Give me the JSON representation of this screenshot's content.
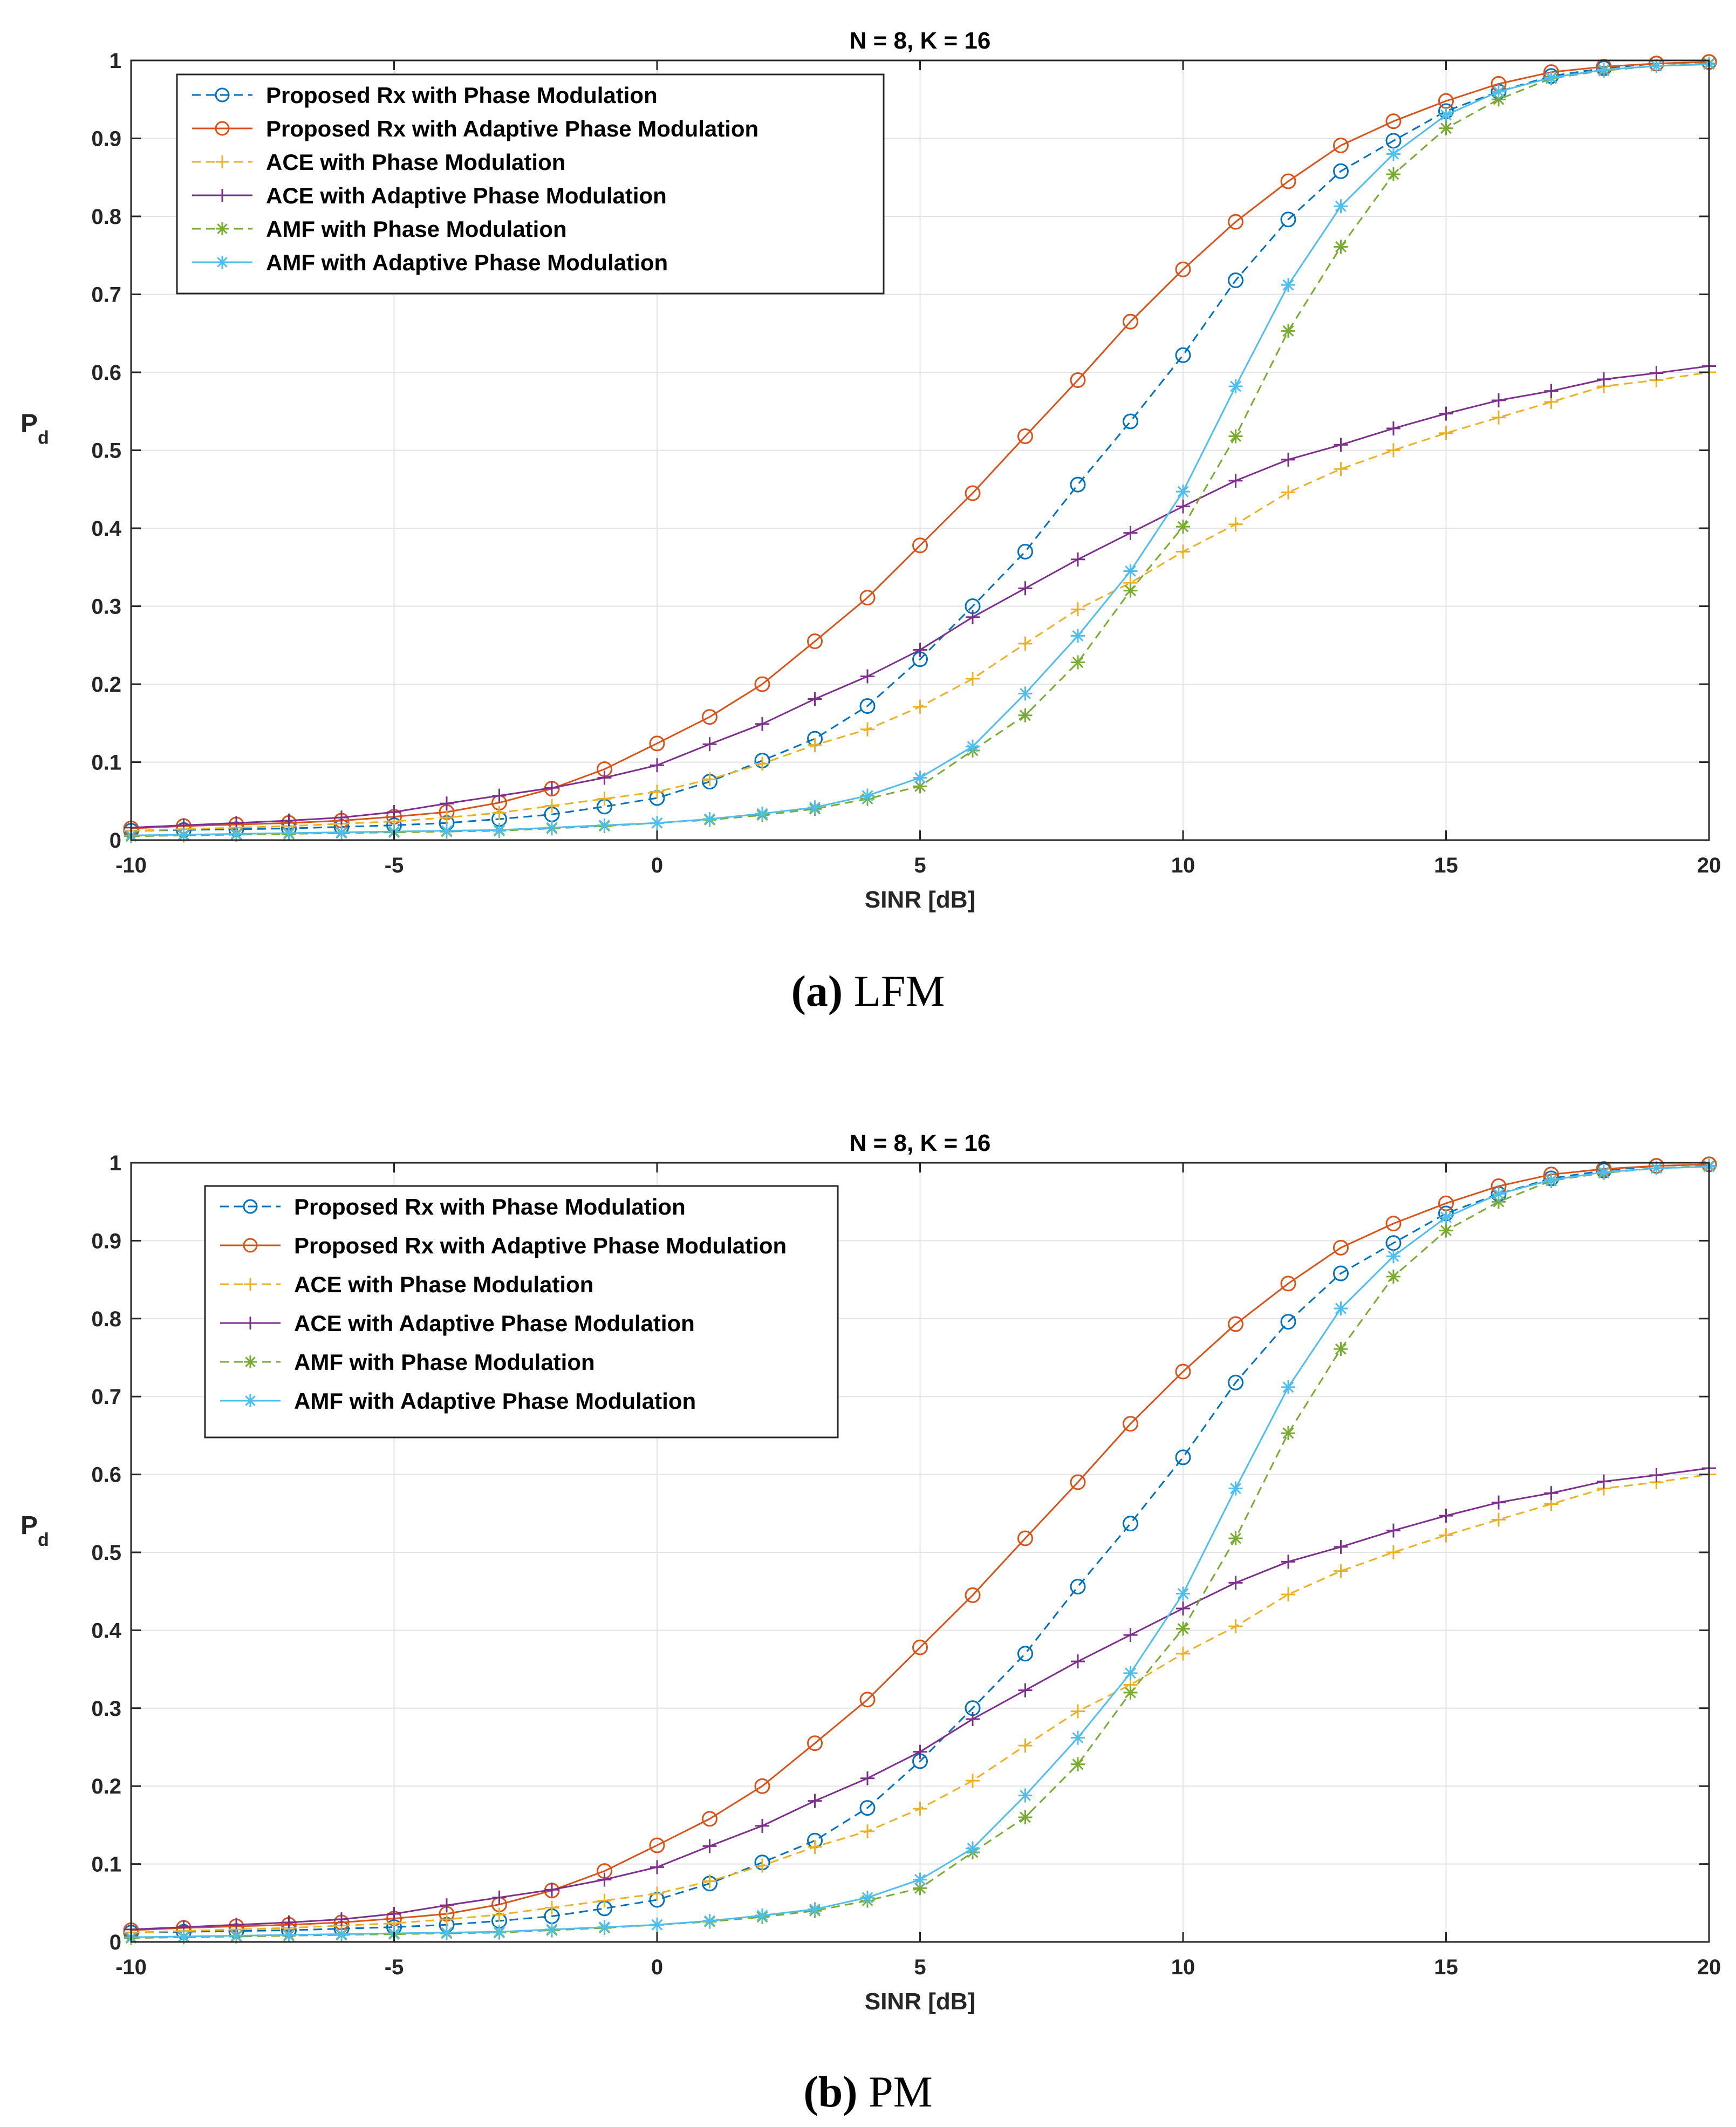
{
  "captions": [
    {
      "label": "(a)",
      "text": "LFM"
    },
    {
      "label": "(b)",
      "text": "PM"
    }
  ],
  "colors": {
    "proposed_pm": "#0072BD",
    "proposed_apm": "#D95319",
    "ace_pm": "#EDB120",
    "ace_apm": "#7E2F8E",
    "amf_pm": "#77AC30",
    "amf_apm": "#4DBEEE"
  },
  "chart_data": [
    {
      "type": "line",
      "title": "N = 8, K = 16",
      "xlabel": "SINR [dB]",
      "ylabel": "P",
      "ylabel_sub": "d",
      "xlim": [
        -10,
        20
      ],
      "ylim": [
        0,
        1
      ],
      "xticks": [
        -10,
        -5,
        0,
        5,
        10,
        15,
        20
      ],
      "yticks": [
        0,
        0.1,
        0.2,
        0.3,
        0.4,
        0.5,
        0.6,
        0.7,
        0.8,
        0.9,
        1
      ],
      "grid": true,
      "legend_position": "top-left",
      "x": [
        -10,
        -9,
        -8,
        -7,
        -6,
        -5,
        -4,
        -3,
        -2,
        -1,
        0,
        1,
        2,
        3,
        4,
        5,
        6,
        7,
        8,
        9,
        10,
        11,
        12,
        13,
        14,
        15,
        16,
        17,
        18,
        19,
        20
      ],
      "series": [
        {
          "name": "Proposed Rx with Phase Modulation",
          "color_key": "proposed_pm",
          "dash": true,
          "marker": "circle",
          "values": [
            0.012,
            0.013,
            0.014,
            0.015,
            0.017,
            0.019,
            0.022,
            0.027,
            0.033,
            0.043,
            0.054,
            0.075,
            0.102,
            0.13,
            0.172,
            0.232,
            0.3,
            0.37,
            0.456,
            0.537,
            0.622,
            0.718,
            0.796,
            0.858,
            0.897,
            0.935,
            0.96,
            0.98,
            0.99,
            0.996,
            0.998
          ]
        },
        {
          "name": "Proposed Rx with Adaptive Phase Modulation",
          "color_key": "proposed_apm",
          "dash": false,
          "marker": "circle",
          "values": [
            0.015,
            0.018,
            0.02,
            0.022,
            0.025,
            0.03,
            0.036,
            0.048,
            0.066,
            0.091,
            0.124,
            0.158,
            0.2,
            0.255,
            0.311,
            0.378,
            0.445,
            0.518,
            0.59,
            0.665,
            0.732,
            0.793,
            0.845,
            0.891,
            0.922,
            0.948,
            0.97,
            0.985,
            0.992,
            0.996,
            0.998
          ]
        },
        {
          "name": "ACE with Phase Modulation",
          "color_key": "ace_pm",
          "dash": true,
          "marker": "plus",
          "values": [
            0.012,
            0.014,
            0.016,
            0.018,
            0.021,
            0.024,
            0.029,
            0.035,
            0.044,
            0.053,
            0.062,
            0.078,
            0.098,
            0.122,
            0.142,
            0.171,
            0.207,
            0.252,
            0.296,
            0.33,
            0.37,
            0.405,
            0.446,
            0.476,
            0.5,
            0.522,
            0.542,
            0.562,
            0.582,
            0.59,
            0.6
          ]
        },
        {
          "name": "ACE with Adaptive Phase Modulation",
          "color_key": "ace_apm",
          "dash": false,
          "marker": "plus",
          "values": [
            0.016,
            0.019,
            0.022,
            0.025,
            0.029,
            0.036,
            0.047,
            0.057,
            0.067,
            0.08,
            0.096,
            0.123,
            0.149,
            0.181,
            0.21,
            0.244,
            0.286,
            0.323,
            0.36,
            0.394,
            0.428,
            0.461,
            0.488,
            0.507,
            0.528,
            0.547,
            0.564,
            0.576,
            0.591,
            0.599,
            0.608
          ]
        },
        {
          "name": "AMF with Phase Modulation",
          "color_key": "amf_pm",
          "dash": true,
          "marker": "asterisk",
          "values": [
            0.005,
            0.006,
            0.007,
            0.008,
            0.009,
            0.01,
            0.011,
            0.012,
            0.015,
            0.018,
            0.022,
            0.026,
            0.032,
            0.04,
            0.053,
            0.069,
            0.115,
            0.16,
            0.228,
            0.32,
            0.402,
            0.518,
            0.653,
            0.761,
            0.854,
            0.913,
            0.95,
            0.977,
            0.987,
            0.993,
            0.996
          ]
        },
        {
          "name": "AMF with Adaptive Phase Modulation",
          "color_key": "amf_apm",
          "dash": false,
          "marker": "asterisk",
          "values": [
            0.006,
            0.007,
            0.008,
            0.009,
            0.01,
            0.011,
            0.012,
            0.013,
            0.016,
            0.019,
            0.022,
            0.027,
            0.034,
            0.042,
            0.057,
            0.08,
            0.12,
            0.188,
            0.262,
            0.345,
            0.447,
            0.582,
            0.712,
            0.813,
            0.88,
            0.93,
            0.96,
            0.978,
            0.988,
            0.993,
            0.995
          ]
        }
      ]
    },
    {
      "type": "line",
      "title": "N = 8, K = 16",
      "xlabel": "SINR [dB]",
      "ylabel": "P",
      "ylabel_sub": "d",
      "xlim": [
        -10,
        20
      ],
      "ylim": [
        0,
        1
      ],
      "xticks": [
        -10,
        -5,
        0,
        5,
        10,
        15,
        20
      ],
      "yticks": [
        0,
        0.1,
        0.2,
        0.3,
        0.4,
        0.5,
        0.6,
        0.7,
        0.8,
        0.9,
        1
      ],
      "grid": true,
      "legend_position": "top-left",
      "x": [
        -10,
        -9,
        -8,
        -7,
        -6,
        -5,
        -4,
        -3,
        -2,
        -1,
        0,
        1,
        2,
        3,
        4,
        5,
        6,
        7,
        8,
        9,
        10,
        11,
        12,
        13,
        14,
        15,
        16,
        17,
        18,
        19,
        20
      ],
      "series": [
        {
          "name": "Proposed Rx with Phase Modulation",
          "color_key": "proposed_pm",
          "dash": true,
          "marker": "circle",
          "values": [
            0.012,
            0.013,
            0.014,
            0.015,
            0.017,
            0.019,
            0.022,
            0.027,
            0.033,
            0.043,
            0.054,
            0.075,
            0.102,
            0.13,
            0.172,
            0.232,
            0.3,
            0.37,
            0.456,
            0.537,
            0.622,
            0.718,
            0.796,
            0.858,
            0.897,
            0.935,
            0.96,
            0.98,
            0.99,
            0.996,
            0.998
          ]
        },
        {
          "name": "Proposed Rx with Adaptive Phase Modulation",
          "color_key": "proposed_apm",
          "dash": false,
          "marker": "circle",
          "values": [
            0.015,
            0.018,
            0.02,
            0.022,
            0.025,
            0.03,
            0.036,
            0.048,
            0.066,
            0.091,
            0.124,
            0.158,
            0.2,
            0.255,
            0.311,
            0.378,
            0.445,
            0.518,
            0.59,
            0.665,
            0.732,
            0.793,
            0.845,
            0.891,
            0.922,
            0.948,
            0.97,
            0.985,
            0.992,
            0.996,
            0.998
          ]
        },
        {
          "name": "ACE with Phase Modulation",
          "color_key": "ace_pm",
          "dash": true,
          "marker": "plus",
          "values": [
            0.012,
            0.014,
            0.016,
            0.018,
            0.021,
            0.024,
            0.029,
            0.035,
            0.044,
            0.053,
            0.062,
            0.078,
            0.098,
            0.122,
            0.142,
            0.171,
            0.207,
            0.252,
            0.296,
            0.33,
            0.37,
            0.405,
            0.446,
            0.476,
            0.5,
            0.522,
            0.542,
            0.562,
            0.582,
            0.59,
            0.6
          ]
        },
        {
          "name": "ACE with Adaptive Phase Modulation",
          "color_key": "ace_apm",
          "dash": false,
          "marker": "plus",
          "values": [
            0.016,
            0.019,
            0.022,
            0.025,
            0.029,
            0.036,
            0.047,
            0.057,
            0.067,
            0.08,
            0.096,
            0.123,
            0.149,
            0.181,
            0.21,
            0.244,
            0.286,
            0.323,
            0.36,
            0.394,
            0.428,
            0.461,
            0.488,
            0.507,
            0.528,
            0.547,
            0.564,
            0.576,
            0.591,
            0.599,
            0.608
          ]
        },
        {
          "name": "AMF with Phase Modulation",
          "color_key": "amf_pm",
          "dash": true,
          "marker": "asterisk",
          "values": [
            0.005,
            0.006,
            0.007,
            0.008,
            0.009,
            0.01,
            0.011,
            0.012,
            0.015,
            0.018,
            0.022,
            0.026,
            0.032,
            0.04,
            0.053,
            0.069,
            0.115,
            0.16,
            0.228,
            0.32,
            0.402,
            0.518,
            0.653,
            0.761,
            0.854,
            0.913,
            0.95,
            0.977,
            0.987,
            0.993,
            0.996
          ]
        },
        {
          "name": "AMF with Adaptive Phase Modulation",
          "color_key": "amf_apm",
          "dash": false,
          "marker": "asterisk",
          "values": [
            0.006,
            0.007,
            0.008,
            0.009,
            0.01,
            0.011,
            0.012,
            0.013,
            0.016,
            0.019,
            0.022,
            0.027,
            0.034,
            0.042,
            0.057,
            0.08,
            0.12,
            0.188,
            0.262,
            0.345,
            0.447,
            0.582,
            0.712,
            0.813,
            0.88,
            0.93,
            0.96,
            0.978,
            0.988,
            0.993,
            0.995
          ]
        }
      ]
    }
  ]
}
